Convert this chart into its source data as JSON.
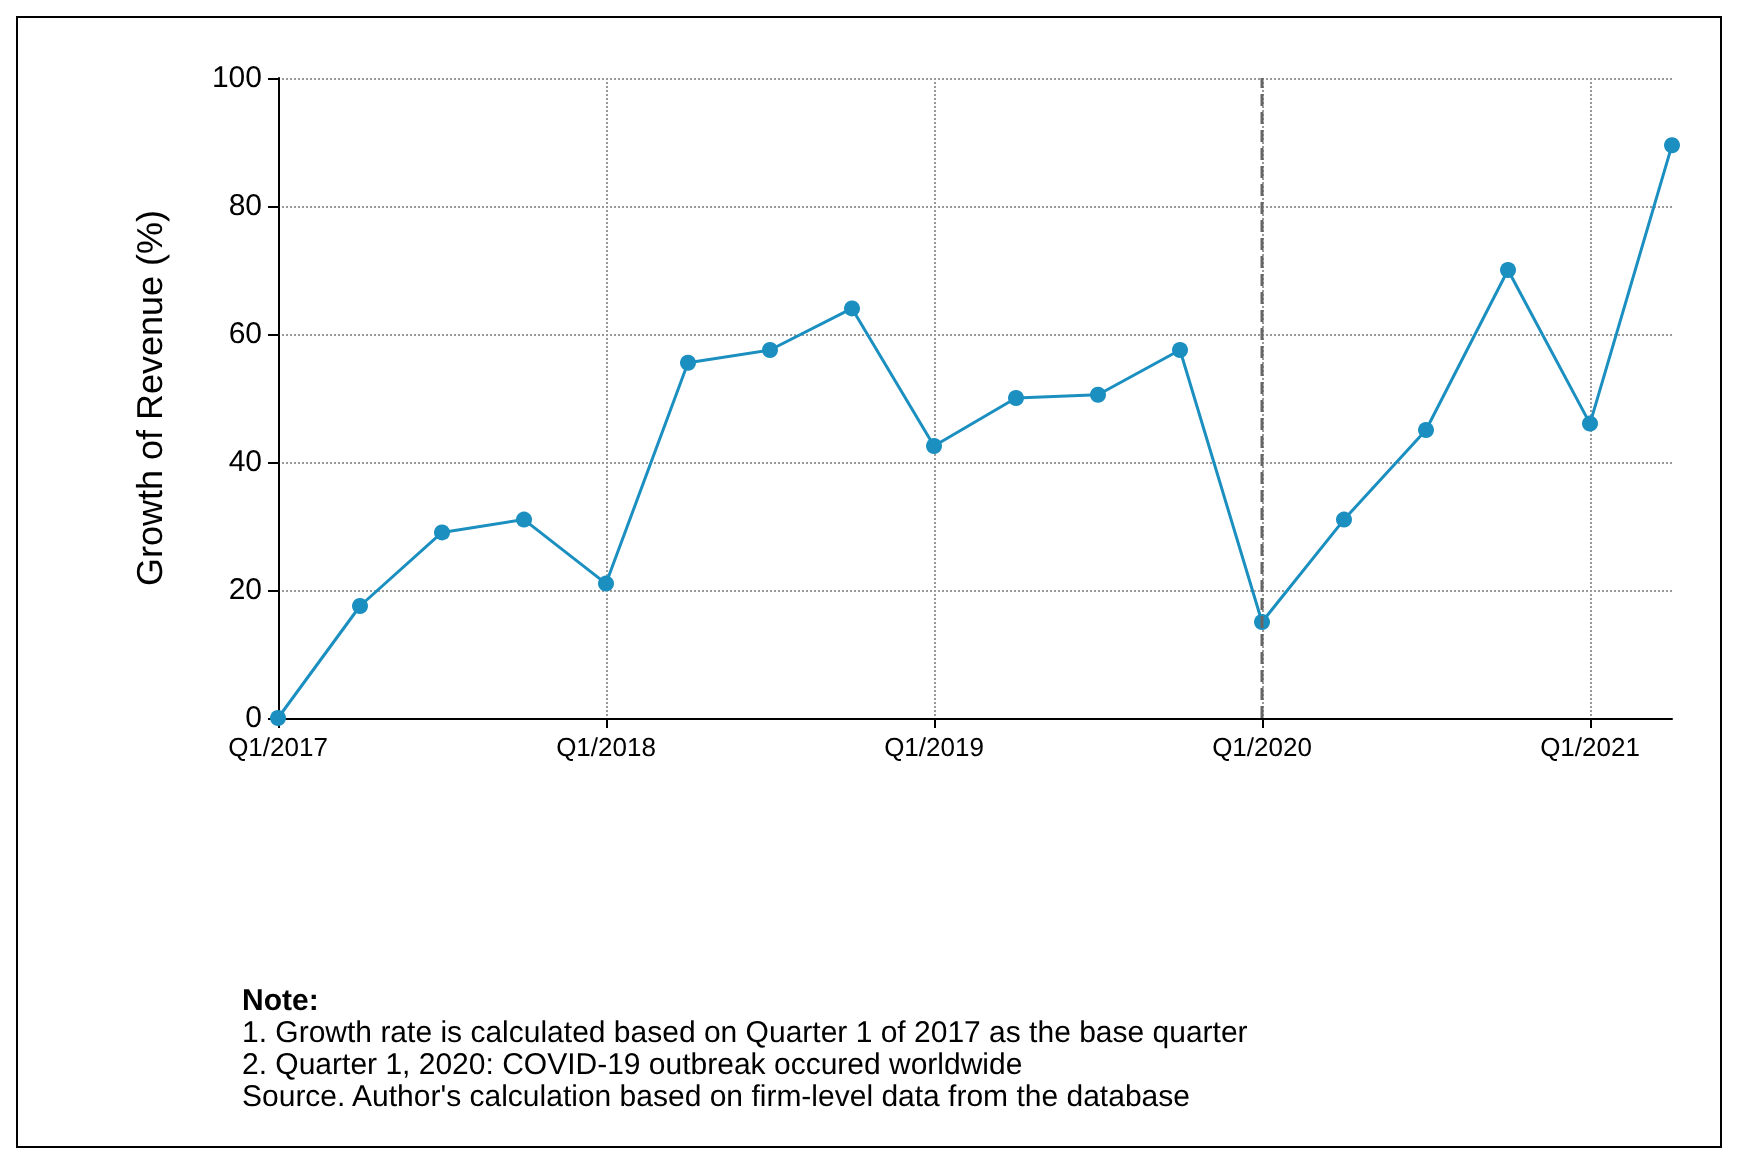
{
  "chart_data": {
    "type": "line",
    "ylabel": "Growth of Revenue (%)",
    "categories": [
      "Q1/2017",
      null,
      null,
      null,
      "Q1/2018",
      null,
      null,
      null,
      "Q1/2019",
      null,
      null,
      null,
      "Q1/2020",
      null,
      null,
      null,
      "Q1/2021",
      null
    ],
    "series": [
      {
        "color": "#1a8fc0",
        "values": [
          0,
          17.5,
          29,
          31,
          21,
          55.5,
          57.5,
          64,
          42.5,
          50,
          50.5,
          57.5,
          15,
          31,
          45,
          70,
          46,
          89.5
        ]
      }
    ],
    "ylim": [
      0,
      100
    ],
    "yticks": [
      0,
      20,
      40,
      60,
      80,
      100
    ],
    "grid": true,
    "marker": "circle",
    "line_style": "solid",
    "ref_lines": [
      {
        "axis": "x",
        "value": "Q1/2020",
        "color": "#666666",
        "line_style": "dashed"
      }
    ],
    "annotations": [
      "Note:",
      "1. Growth rate is calculated based on Quarter 1 of 2017 as the base quarter",
      "2. Quarter 1, 2020: COVID-19 outbreak occured worldwide",
      "Source. Author's calculation based on firm-level data from the database"
    ]
  }
}
